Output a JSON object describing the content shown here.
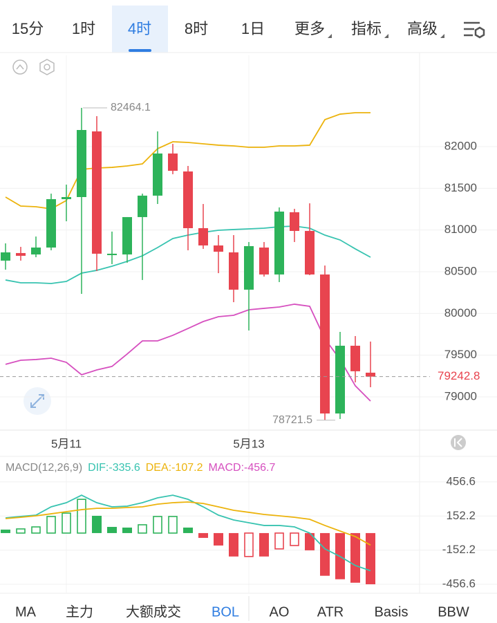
{
  "top_tabs": {
    "items": [
      "15分",
      "1时",
      "4时",
      "8时",
      "1日",
      "更多",
      "指标",
      "高级"
    ],
    "selected": 2,
    "dropdowns": [
      5,
      6,
      7
    ]
  },
  "chart_data": [
    {
      "type": "candlestick",
      "categories": [
        null,
        null,
        null,
        null,
        "5月11",
        null,
        null,
        null,
        null,
        null,
        null,
        null,
        null,
        null,
        null,
        null,
        "5月13",
        null,
        null,
        null,
        null,
        null,
        null,
        null,
        null
      ],
      "open": [
        80633,
        80724,
        80707,
        80790,
        81370,
        81395,
        82182,
        80699,
        80707,
        81155,
        81412,
        81917,
        81702,
        81022,
        80815,
        80732,
        80285,
        80790,
        80467,
        81213,
        80989,
        80467,
        78801,
        79613,
        79290
      ],
      "high": [
        80840,
        80798,
        80922,
        81436,
        81544,
        82464.1,
        82365,
        80981,
        81155,
        81436,
        82182,
        82033,
        81768,
        81312,
        80939,
        80939,
        80856,
        80856,
        81271,
        81254,
        81320,
        80575,
        79779,
        79729,
        79663
      ],
      "low": [
        80525,
        80633,
        80674,
        80757,
        81105,
        80235,
        80508,
        80591,
        80608,
        80401,
        81312,
        81669,
        80757,
        80774,
        80483,
        80135,
        79796,
        80442,
        80376,
        80856,
        80459,
        78721.5,
        78735,
        79174,
        79116
      ],
      "close": [
        80732,
        80691,
        80790,
        81370,
        81395,
        82199,
        80716,
        80716,
        81155,
        81412,
        81917,
        81710,
        81022,
        80815,
        80740,
        80285,
        80807,
        80467,
        81221,
        80989,
        80467,
        78801,
        79613,
        79307,
        79242.8
      ],
      "up_color": "#2db35a",
      "down_color": "#e8444f",
      "series": [
        {
          "color": "#ecb30c",
          "values": [
            81395,
            81287,
            81279,
            81254,
            81354,
            81727,
            81743,
            81751,
            81768,
            81793,
            81975,
            82058,
            82050,
            82033,
            82017,
            82008,
            81992,
            81992,
            82008,
            82008,
            82017,
            82323,
            82389,
            82406,
            82406
          ]
        },
        {
          "color": "#37c3b0",
          "values": [
            80401,
            80367,
            80367,
            80359,
            80384,
            80483,
            80517,
            80566,
            80624,
            80691,
            80790,
            80898,
            80939,
            80972,
            80997,
            81006,
            81014,
            81022,
            81039,
            81047,
            81022,
            80939,
            80881,
            80774,
            80674
          ]
        },
        {
          "color": "#d64fbf",
          "values": [
            79390,
            79439,
            79448,
            79464,
            79414,
            79265,
            79323,
            79365,
            79514,
            79671,
            79671,
            79738,
            79820,
            79903,
            79961,
            79978,
            80044,
            80061,
            80077,
            80111,
            80086,
            79696,
            79448,
            79133,
            78950
          ]
        }
      ],
      "ylim": [
        78602,
        83094
      ],
      "yticks": [
        79000,
        79500,
        80000,
        80500,
        81000,
        81500,
        82000
      ],
      "grid": true,
      "max_index": 5,
      "min_index": 21
    },
    {
      "type": "macd",
      "legend_title": "MACD(12,26,9)",
      "series": [
        {
          "label": "DIF:-335.6",
          "color": "#37c3b0",
          "values": [
            135,
            148,
            160,
            234,
            271,
            338,
            271,
            234,
            240,
            271,
            314,
            338,
            301,
            234,
            160,
            117,
            92,
            68,
            68,
            55,
            0,
            -141,
            -209,
            -289,
            -335.6
          ]
        },
        {
          "label": "DEA:-107.2",
          "color": "#ecb30c",
          "values": [
            129,
            141,
            154,
            172,
            191,
            209,
            221,
            221,
            228,
            234,
            258,
            271,
            277,
            264,
            234,
            203,
            185,
            166,
            154,
            141,
            123,
            68,
            18,
            -31,
            -107.2
          ]
        }
      ],
      "histogram": {
        "label": "MACD:-456.7",
        "label_color": "#d64fbf",
        "up_color": "#2db35a",
        "down_color": "#e8444f",
        "values": [
          31,
          37,
          55,
          148,
          178,
          301,
          154,
          55,
          49,
          74,
          148,
          148,
          49,
          -43,
          -111,
          -209,
          -209,
          -209,
          -141,
          -111,
          -154,
          -381,
          -412,
          -443,
          -456.7
        ],
        "hollow": [
          false,
          true,
          true,
          true,
          true,
          true,
          false,
          false,
          false,
          true,
          true,
          true,
          false,
          false,
          false,
          false,
          true,
          false,
          true,
          true,
          false,
          false,
          false,
          false,
          false
        ]
      },
      "ylim": [
        -537,
        635
      ],
      "yticks": [
        456.6,
        152.2,
        -152.2,
        -456.6
      ],
      "grid": true
    }
  ],
  "bottom_tabs": {
    "items": [
      "MA",
      "主力",
      "大额成交",
      "BOL",
      "AO",
      "ATR",
      "Basis",
      "BBW"
    ],
    "selected": 3
  }
}
